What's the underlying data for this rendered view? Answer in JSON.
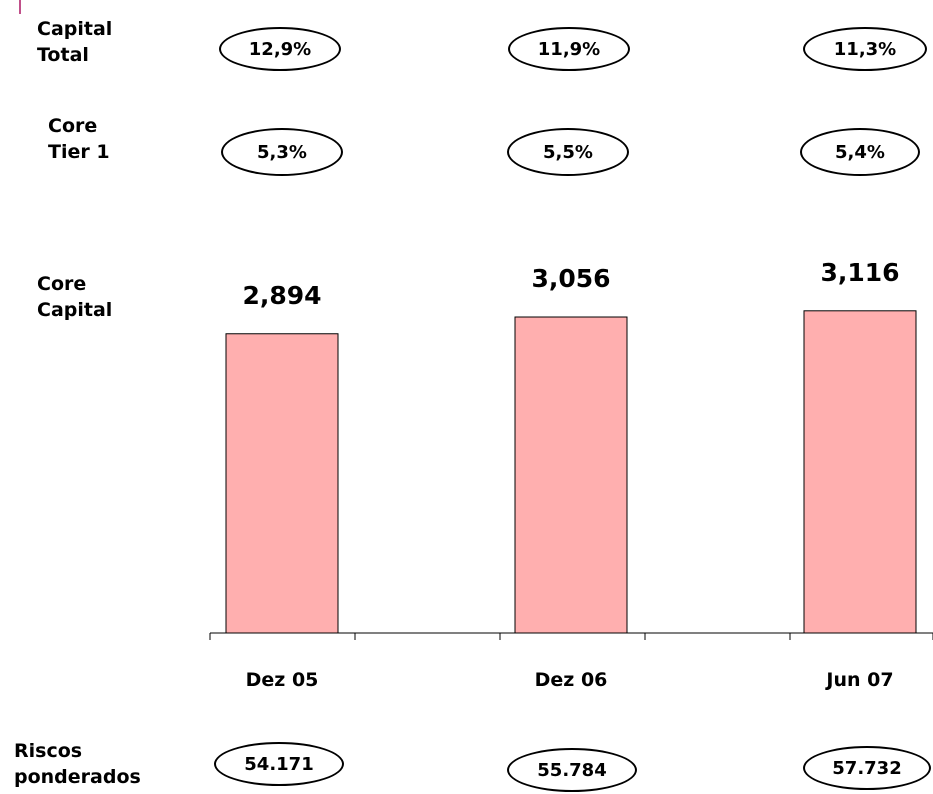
{
  "colors": {
    "bar": "#FFAFAF",
    "accent": "#C0508A",
    "axis": "#000000"
  },
  "labels": {
    "capital_total": [
      "Capital",
      "Total"
    ],
    "core_tier1": [
      "Core",
      "Tier 1"
    ],
    "core_capital": [
      "Core",
      "Capital"
    ],
    "riscos_ponderados": [
      "Riscos",
      "ponderados"
    ]
  },
  "capital_total_values": [
    "12,9%",
    "11,9%",
    "11,3%"
  ],
  "core_tier1_values": [
    "5,3%",
    "5,5%",
    "5,4%"
  ],
  "riscos_ponderados_values": [
    "54.171",
    "55.784",
    "57.732"
  ],
  "chart_data": {
    "type": "bar",
    "title": "",
    "xlabel": "",
    "ylabel": "Core Capital",
    "categories": [
      "Dez 05",
      "Dez 06",
      "Jun 07"
    ],
    "values": [
      2894,
      3056,
      3116
    ],
    "data_labels": [
      "2,894",
      "3,056",
      "3,116"
    ],
    "ylim": [
      0,
      3600
    ],
    "grid": false,
    "legend": "none"
  }
}
